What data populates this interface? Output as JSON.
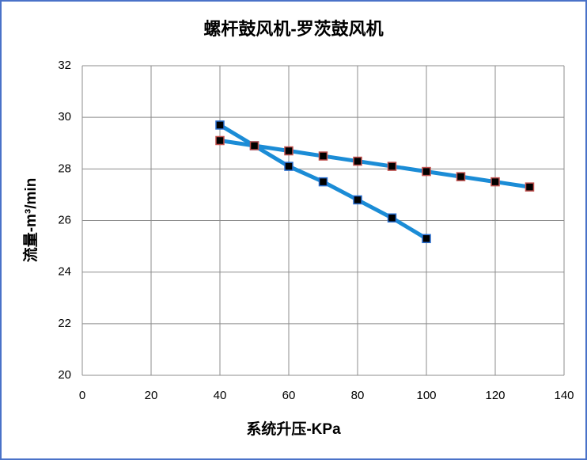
{
  "chart_data": {
    "type": "line",
    "title": "螺杆鼓风机-罗茨鼓风机",
    "x_label": "系统升压-KPa",
    "y_label": "流量-m³/min",
    "xlim": [
      0,
      140
    ],
    "xticks": [
      0,
      20,
      40,
      60,
      80,
      100,
      120,
      140
    ],
    "ylim": [
      20,
      32
    ],
    "yticks": [
      20,
      22,
      24,
      26,
      28,
      30,
      32
    ],
    "grid": true,
    "series": [
      {
        "color": "#1b8cd6",
        "marker_edge_color": "#2a6fd0",
        "x": [
          40,
          50,
          60,
          70,
          80,
          90,
          100
        ],
        "values": [
          29.7,
          28.9,
          28.1,
          27.5,
          26.8,
          26.1,
          25.3
        ]
      },
      {
        "color": "#1b8cd6",
        "marker_edge_color": "#c0504d",
        "x": [
          40,
          50,
          60,
          70,
          80,
          90,
          100,
          110,
          120,
          130
        ],
        "values": [
          29.1,
          28.9,
          28.7,
          28.5,
          28.3,
          28.1,
          27.9,
          27.7,
          27.5,
          27.3
        ]
      }
    ]
  }
}
